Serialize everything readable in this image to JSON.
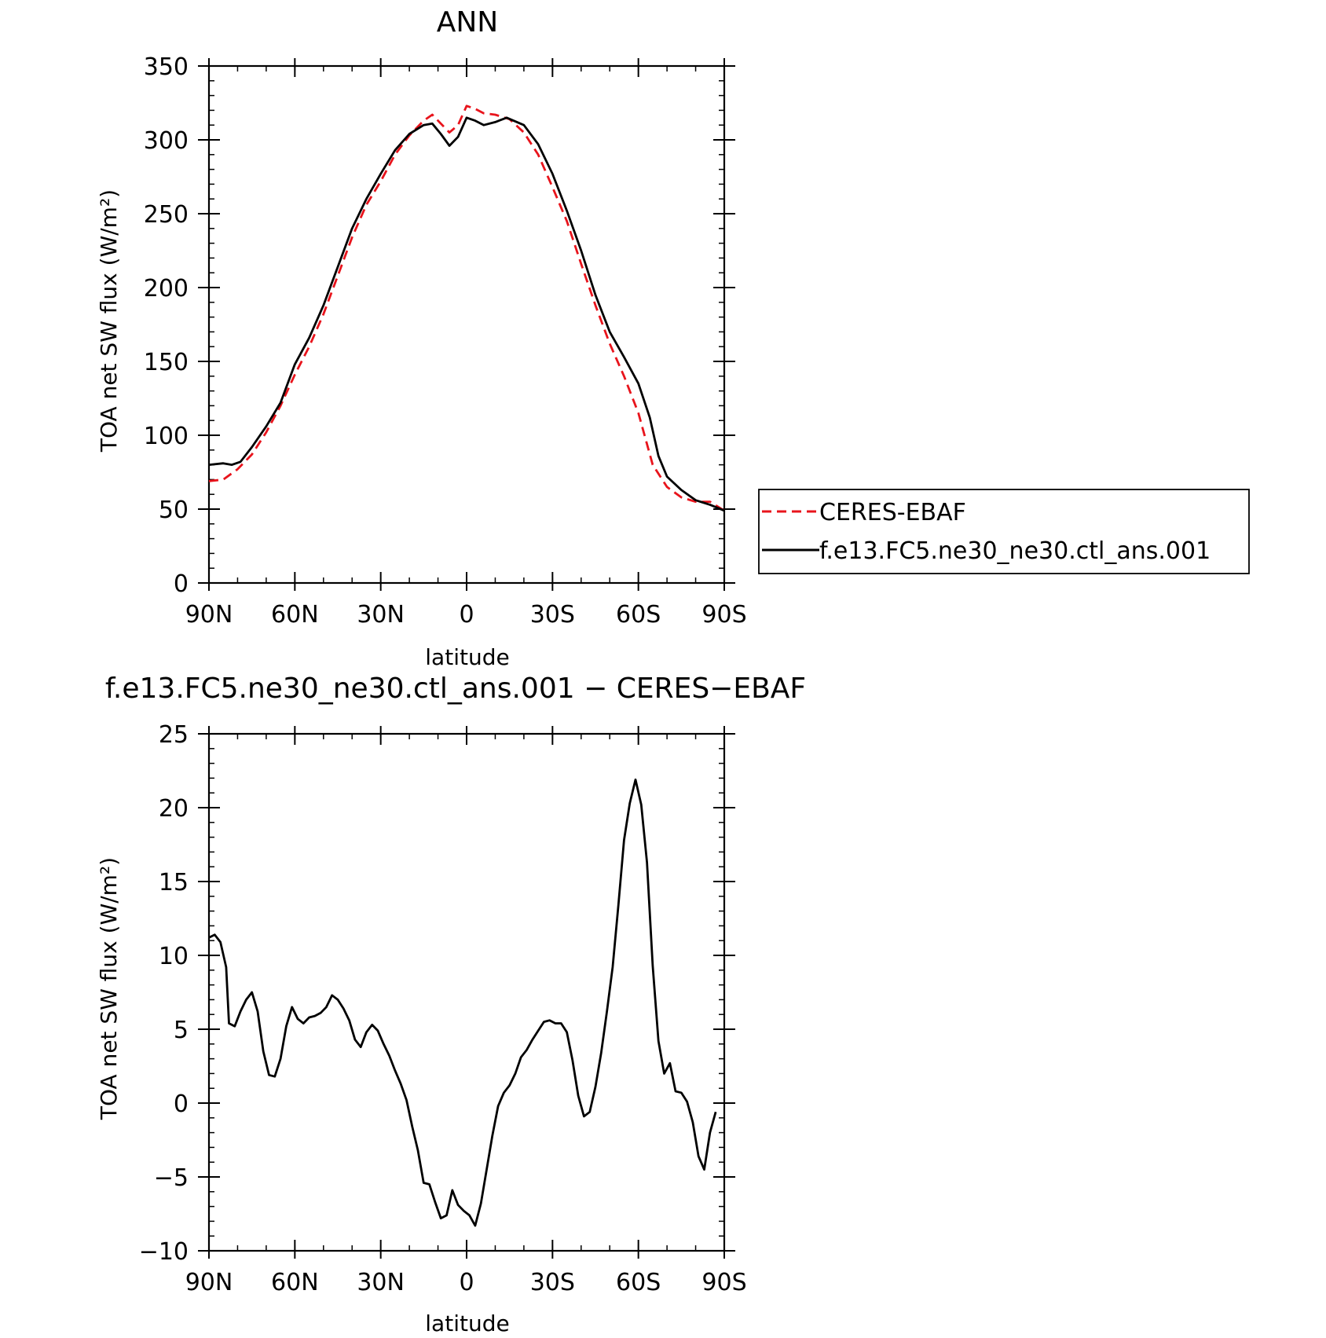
{
  "chart_data": [
    {
      "type": "line",
      "title": "ANN",
      "xlabel": "latitude",
      "ylabel": "TOA net SW flux (W/m²)",
      "xlim": [
        90,
        -90
      ],
      "ylim": [
        0,
        350
      ],
      "x_ticks": [
        {
          "value": 90,
          "label": "90N"
        },
        {
          "value": 60,
          "label": "60N"
        },
        {
          "value": 30,
          "label": "30N"
        },
        {
          "value": 0,
          "label": "0"
        },
        {
          "value": -30,
          "label": "30S"
        },
        {
          "value": -60,
          "label": "60S"
        },
        {
          "value": -90,
          "label": "90S"
        }
      ],
      "y_ticks": [
        0,
        50,
        100,
        150,
        200,
        250,
        300,
        350
      ],
      "legend": "right",
      "series": [
        {
          "name": "CERES-EBAF",
          "color": "#e8141c",
          "dash": "dashed",
          "points": [
            [
              90,
              69
            ],
            [
              85,
              70
            ],
            [
              80,
              77
            ],
            [
              75,
              87
            ],
            [
              70,
              102
            ],
            [
              65,
              120
            ],
            [
              60,
              141
            ],
            [
              55,
              160
            ],
            [
              50,
              182
            ],
            [
              45,
              208
            ],
            [
              40,
              234
            ],
            [
              35,
              256
            ],
            [
              30,
              272
            ],
            [
              25,
              290
            ],
            [
              20,
              303
            ],
            [
              15,
              313
            ],
            [
              12,
              317
            ],
            [
              9,
              311
            ],
            [
              6,
              305
            ],
            [
              3,
              310
            ],
            [
              0,
              323
            ],
            [
              -3,
              321
            ],
            [
              -6,
              318
            ],
            [
              -10,
              317
            ],
            [
              -15,
              314
            ],
            [
              -20,
              305
            ],
            [
              -25,
              290
            ],
            [
              -30,
              268
            ],
            [
              -35,
              245
            ],
            [
              -40,
              216
            ],
            [
              -45,
              188
            ],
            [
              -50,
              162
            ],
            [
              -55,
              140
            ],
            [
              -60,
              115
            ],
            [
              -65,
              80
            ],
            [
              -70,
              65
            ],
            [
              -75,
              58
            ],
            [
              -80,
              55
            ],
            [
              -85,
              55
            ],
            [
              -90,
              49
            ]
          ]
        },
        {
          "name": "f.e13.FC5.ne30_ne30.ctl_ans.001",
          "color": "#000000",
          "dash": "solid",
          "points": [
            [
              90,
              80
            ],
            [
              85,
              81
            ],
            [
              82,
              80
            ],
            [
              79,
              82
            ],
            [
              75,
              92
            ],
            [
              70,
              106
            ],
            [
              65,
              122
            ],
            [
              60,
              148
            ],
            [
              55,
              166
            ],
            [
              50,
              188
            ],
            [
              45,
              214
            ],
            [
              40,
              240
            ],
            [
              35,
              260
            ],
            [
              30,
              277
            ],
            [
              25,
              293
            ],
            [
              20,
              304
            ],
            [
              15,
              310
            ],
            [
              12,
              311
            ],
            [
              9,
              304
            ],
            [
              6,
              296
            ],
            [
              3,
              302
            ],
            [
              0,
              315
            ],
            [
              -3,
              313
            ],
            [
              -6,
              310
            ],
            [
              -10,
              312
            ],
            [
              -14,
              315
            ],
            [
              -20,
              310
            ],
            [
              -25,
              297
            ],
            [
              -30,
              277
            ],
            [
              -35,
              252
            ],
            [
              -40,
              225
            ],
            [
              -45,
              195
            ],
            [
              -50,
              170
            ],
            [
              -55,
              153
            ],
            [
              -60,
              135
            ],
            [
              -64,
              112
            ],
            [
              -67,
              86
            ],
            [
              -70,
              72
            ],
            [
              -75,
              63
            ],
            [
              -80,
              56
            ],
            [
              -85,
              53
            ],
            [
              -90,
              49
            ]
          ]
        }
      ]
    },
    {
      "type": "line",
      "title": "f.e13.FC5.ne30_ne30.ctl_ans.001 − CERES−EBAF",
      "xlabel": "latitude",
      "ylabel": "TOA net SW flux (W/m²)",
      "xlim": [
        90,
        -90
      ],
      "ylim": [
        -10,
        25
      ],
      "x_ticks": [
        {
          "value": 90,
          "label": "90N"
        },
        {
          "value": 60,
          "label": "60N"
        },
        {
          "value": 30,
          "label": "30N"
        },
        {
          "value": 0,
          "label": "0"
        },
        {
          "value": -30,
          "label": "30S"
        },
        {
          "value": -60,
          "label": "60S"
        },
        {
          "value": -90,
          "label": "90S"
        }
      ],
      "y_ticks": [
        -10,
        -5,
        0,
        5,
        10,
        15,
        20,
        25
      ],
      "series": [
        {
          "color": "#000000",
          "dash": "solid",
          "points": [
            [
              90,
              11.2
            ],
            [
              88,
              11.4
            ],
            [
              86,
              10.9
            ],
            [
              84,
              9.2
            ],
            [
              83,
              5.4
            ],
            [
              81,
              5.2
            ],
            [
              79,
              6.2
            ],
            [
              77,
              7.0
            ],
            [
              75,
              7.5
            ],
            [
              73,
              6.2
            ],
            [
              71,
              3.5
            ],
            [
              69,
              1.9
            ],
            [
              67,
              1.8
            ],
            [
              65,
              3.0
            ],
            [
              63,
              5.2
            ],
            [
              61,
              6.5
            ],
            [
              59,
              5.7
            ],
            [
              57,
              5.4
            ],
            [
              55,
              5.8
            ],
            [
              53,
              5.9
            ],
            [
              51,
              6.1
            ],
            [
              49,
              6.5
            ],
            [
              47,
              7.3
            ],
            [
              45,
              7.0
            ],
            [
              43,
              6.4
            ],
            [
              41,
              5.6
            ],
            [
              39,
              4.3
            ],
            [
              37,
              3.8
            ],
            [
              35,
              4.8
            ],
            [
              33,
              5.3
            ],
            [
              31,
              4.9
            ],
            [
              29,
              4.0
            ],
            [
              27,
              3.2
            ],
            [
              25,
              2.2
            ],
            [
              23,
              1.3
            ],
            [
              21,
              0.2
            ],
            [
              19,
              -1.6
            ],
            [
              17,
              -3.2
            ],
            [
              15,
              -5.4
            ],
            [
              13,
              -5.5
            ],
            [
              11,
              -6.7
            ],
            [
              9,
              -7.8
            ],
            [
              7,
              -7.6
            ],
            [
              5,
              -5.9
            ],
            [
              3,
              -6.9
            ],
            [
              1,
              -7.3
            ],
            [
              -1,
              -7.6
            ],
            [
              -3,
              -8.3
            ],
            [
              -5,
              -6.8
            ],
            [
              -7,
              -4.5
            ],
            [
              -9,
              -2.2
            ],
            [
              -11,
              -0.2
            ],
            [
              -13,
              0.7
            ],
            [
              -15,
              1.2
            ],
            [
              -17,
              2.0
            ],
            [
              -19,
              3.1
            ],
            [
              -21,
              3.6
            ],
            [
              -23,
              4.3
            ],
            [
              -25,
              4.9
            ],
            [
              -27,
              5.5
            ],
            [
              -29,
              5.6
            ],
            [
              -31,
              5.4
            ],
            [
              -33,
              5.4
            ],
            [
              -35,
              4.8
            ],
            [
              -37,
              2.9
            ],
            [
              -39,
              0.5
            ],
            [
              -41,
              -0.9
            ],
            [
              -43,
              -0.6
            ],
            [
              -45,
              1.1
            ],
            [
              -47,
              3.4
            ],
            [
              -49,
              6.2
            ],
            [
              -51,
              9.2
            ],
            [
              -53,
              13.4
            ],
            [
              -55,
              17.8
            ],
            [
              -57,
              20.3
            ],
            [
              -59,
              21.9
            ],
            [
              -61,
              20.2
            ],
            [
              -63,
              16.3
            ],
            [
              -65,
              9.3
            ],
            [
              -67,
              4.2
            ],
            [
              -69,
              2.0
            ],
            [
              -71,
              2.7
            ],
            [
              -73,
              0.8
            ],
            [
              -75,
              0.7
            ],
            [
              -77,
              0.1
            ],
            [
              -79,
              -1.3
            ],
            [
              -81,
              -3.6
            ],
            [
              -83,
              -4.5
            ],
            [
              -85,
              -2.0
            ],
            [
              -87,
              -0.6
            ]
          ]
        }
      ]
    }
  ]
}
